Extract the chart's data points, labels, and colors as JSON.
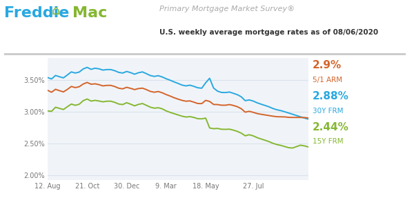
{
  "title_main": "Primary Mortgage Market Survey®",
  "title_sub": "U.S. weekly average mortgage rates as of 08/06/2020",
  "bg_color": "#ffffff",
  "plot_bg_color": "#f0f4f8",
  "grid_color": "#d8e2ec",
  "line_30y_color": "#29a8e0",
  "line_15y_color": "#85b731",
  "line_arm_color": "#d4642a",
  "label_30y_color": "#29a8e0",
  "label_15y_color": "#85b731",
  "label_arm_color": "#d4642a",
  "freddie_blue": "#29a8e0",
  "freddie_green": "#85b731",
  "final_30y": "2.88%",
  "final_15y": "2.44%",
  "final_arm": "2.9%",
  "yticks": [
    2.0,
    2.5,
    3.0,
    3.5
  ],
  "xtick_labels": [
    "12. Aug",
    "21. Oct",
    "30. Dec",
    "9. Mar",
    "18. May",
    "27. Jul"
  ],
  "data_30y": [
    3.55,
    3.49,
    3.6,
    3.55,
    3.52,
    3.58,
    3.65,
    3.6,
    3.62,
    3.68,
    3.72,
    3.65,
    3.7,
    3.68,
    3.65,
    3.67,
    3.67,
    3.65,
    3.62,
    3.6,
    3.65,
    3.62,
    3.58,
    3.62,
    3.64,
    3.6,
    3.57,
    3.55,
    3.58,
    3.55,
    3.52,
    3.5,
    3.47,
    3.45,
    3.42,
    3.4,
    3.43,
    3.4,
    3.38,
    3.35,
    3.45,
    3.6,
    3.33,
    3.33,
    3.3,
    3.3,
    3.32,
    3.29,
    3.27,
    3.25,
    3.15,
    3.2,
    3.17,
    3.14,
    3.12,
    3.1,
    3.08,
    3.05,
    3.03,
    3.02,
    3.0,
    2.98,
    2.96,
    2.94,
    2.92,
    2.9,
    2.88
  ],
  "data_15y": [
    3.02,
    2.98,
    3.1,
    3.05,
    3.02,
    3.08,
    3.14,
    3.09,
    3.11,
    3.18,
    3.22,
    3.15,
    3.19,
    3.17,
    3.15,
    3.17,
    3.17,
    3.15,
    3.12,
    3.1,
    3.16,
    3.12,
    3.08,
    3.12,
    3.14,
    3.1,
    3.07,
    3.05,
    3.07,
    3.05,
    3.01,
    2.99,
    2.97,
    2.95,
    2.93,
    2.91,
    2.93,
    2.91,
    2.89,
    2.87,
    2.96,
    2.69,
    2.74,
    2.74,
    2.72,
    2.72,
    2.73,
    2.71,
    2.69,
    2.67,
    2.6,
    2.65,
    2.62,
    2.59,
    2.57,
    2.55,
    2.53,
    2.5,
    2.48,
    2.47,
    2.45,
    2.43,
    2.42,
    2.45,
    2.48,
    2.46,
    2.44
  ],
  "data_arm": [
    3.35,
    3.28,
    3.38,
    3.33,
    3.3,
    3.35,
    3.42,
    3.37,
    3.39,
    3.44,
    3.48,
    3.42,
    3.45,
    3.43,
    3.4,
    3.42,
    3.42,
    3.4,
    3.37,
    3.35,
    3.4,
    3.37,
    3.34,
    3.37,
    3.38,
    3.35,
    3.32,
    3.3,
    3.33,
    3.3,
    3.27,
    3.25,
    3.22,
    3.2,
    3.18,
    3.16,
    3.18,
    3.15,
    3.13,
    3.11,
    3.2,
    3.17,
    3.1,
    3.12,
    3.1,
    3.1,
    3.12,
    3.1,
    3.08,
    3.06,
    2.97,
    3.02,
    2.99,
    2.97,
    2.96,
    2.95,
    2.94,
    2.93,
    2.92,
    2.92,
    2.92,
    2.91,
    2.91,
    2.91,
    2.91,
    2.91,
    2.9
  ]
}
